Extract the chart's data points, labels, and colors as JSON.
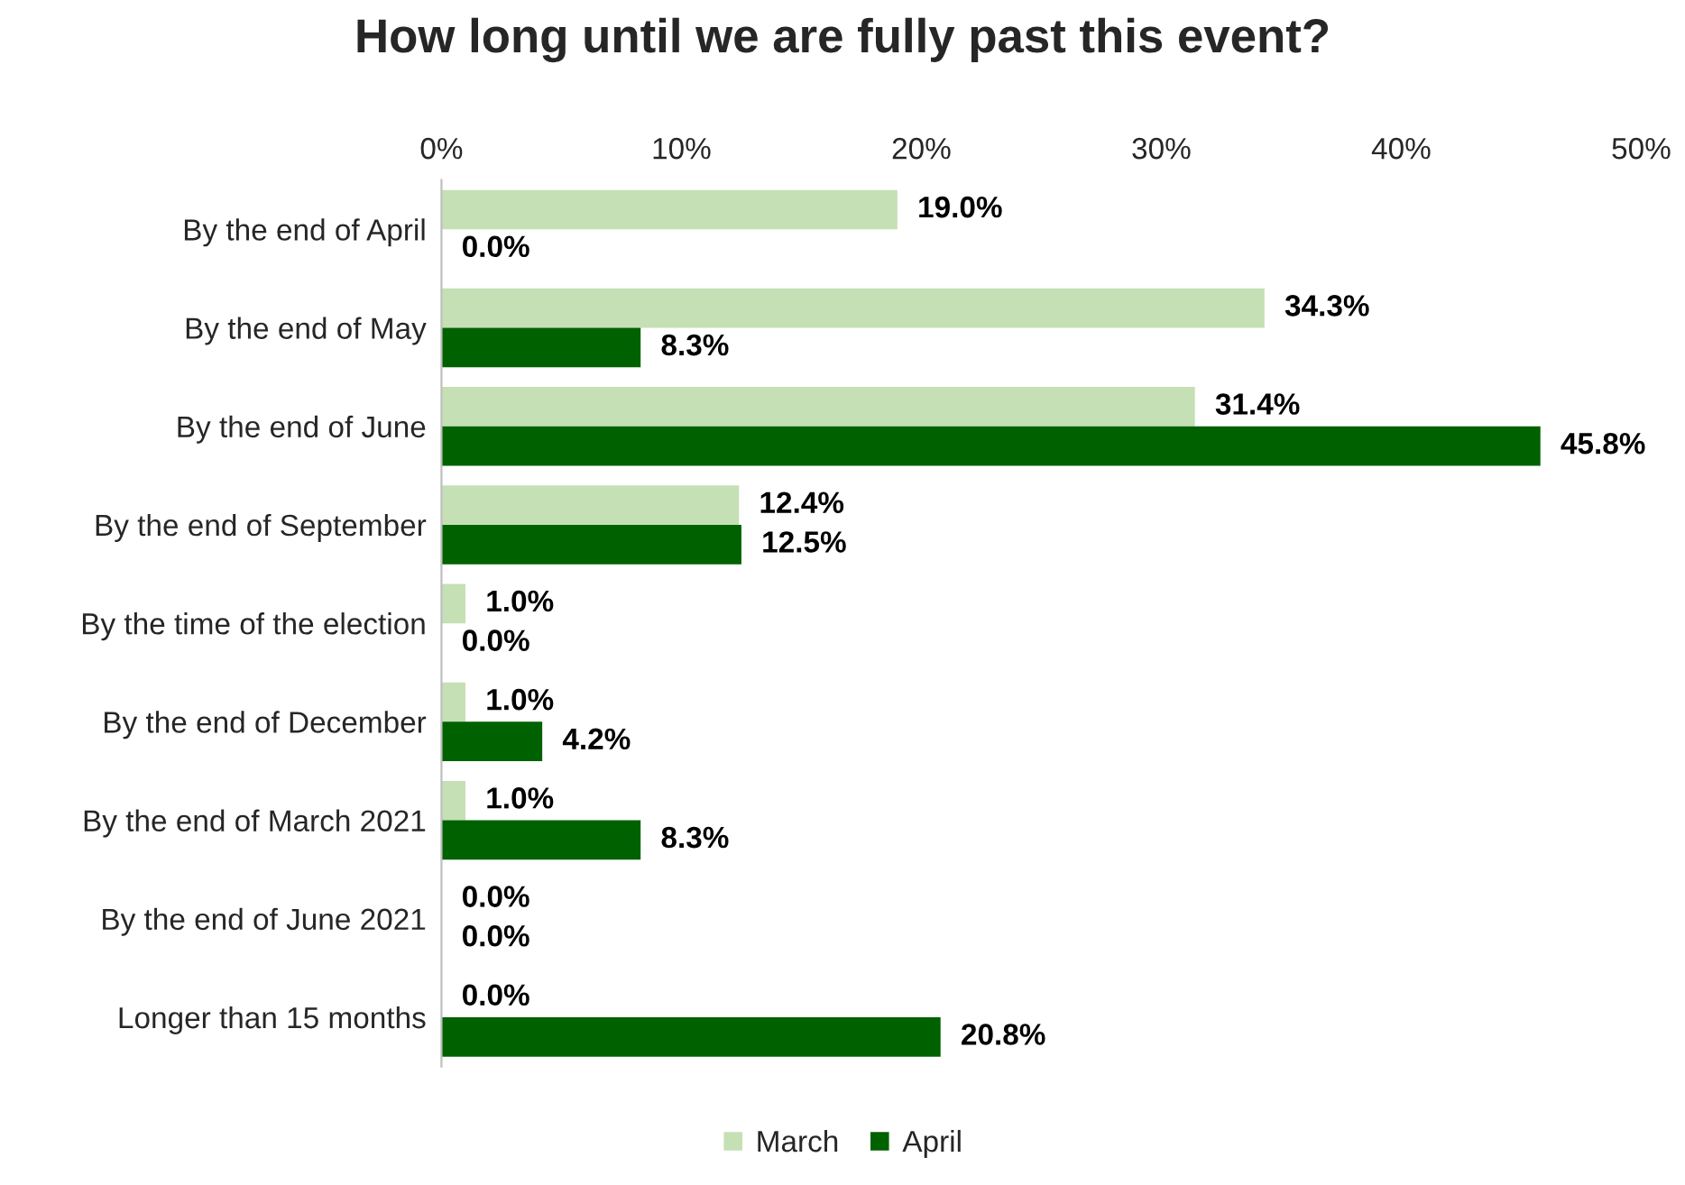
{
  "chart_data": {
    "type": "bar",
    "orientation": "horizontal",
    "title": "How long until we are fully past this event?",
    "categories": [
      "By the end of April",
      "By the end of May",
      "By the end of June",
      "By the end of September",
      "By the time of the election",
      "By the end of December",
      "By the end of March 2021",
      "By the end of June 2021",
      "Longer than 15 months"
    ],
    "series": [
      {
        "name": "March",
        "color": "#c5e0b4",
        "values": [
          19.0,
          34.3,
          31.4,
          12.4,
          1.0,
          1.0,
          1.0,
          0.0,
          0.0
        ],
        "value_labels": [
          "19.0%",
          "34.3%",
          "31.4%",
          "12.4%",
          "1.0%",
          "1.0%",
          "1.0%",
          "0.0%",
          "0.0%"
        ]
      },
      {
        "name": "April",
        "color": "#006100",
        "values": [
          0.0,
          8.3,
          45.8,
          12.5,
          0.0,
          4.2,
          8.3,
          0.0,
          20.8
        ],
        "value_labels": [
          "0.0%",
          "8.3%",
          "45.8%",
          "12.5%",
          "0.0%",
          "4.2%",
          "8.3%",
          "0.0%",
          "20.8%"
        ]
      }
    ],
    "xlim": [
      0,
      50
    ],
    "xticks": [
      {
        "value": 0,
        "label": "0%"
      },
      {
        "value": 10,
        "label": "10%"
      },
      {
        "value": 20,
        "label": "20%"
      },
      {
        "value": 30,
        "label": "30%"
      },
      {
        "value": 40,
        "label": "40%"
      },
      {
        "value": 50,
        "label": "50%"
      }
    ],
    "grid": false,
    "legend": "bottom"
  }
}
